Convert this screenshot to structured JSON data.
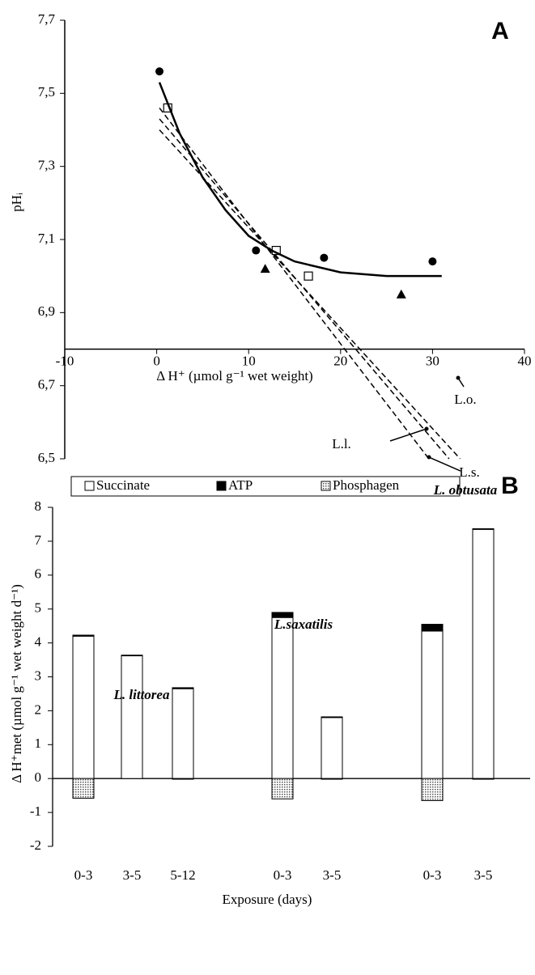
{
  "chart_data": [
    {
      "type": "scatter",
      "panel": "A",
      "ylabel": "pHᵢ",
      "xlabel": "Δ H⁺ (µmol g⁻¹ wet weight)",
      "xlim": [
        -10,
        40
      ],
      "xticks": [
        -10,
        0,
        10,
        20,
        30,
        40
      ],
      "ylim": [
        6.5,
        7.7
      ],
      "yticks": [
        {
          "value": 6.5,
          "label": "6,5"
        },
        {
          "value": 6.7,
          "label": "6,7"
        },
        {
          "value": 6.9,
          "label": "6,9"
        },
        {
          "value": 7.1,
          "label": "7,1"
        },
        {
          "value": 7.3,
          "label": "7,3"
        },
        {
          "value": 7.5,
          "label": "7,5"
        },
        {
          "value": 7.7,
          "label": "7,7"
        }
      ],
      "x_axis_at": 6.8,
      "series": [
        {
          "marker": "circle",
          "color": "#000000",
          "x": [
            0.3,
            10.8,
            18.2,
            30
          ],
          "y": [
            7.56,
            7.07,
            7.05,
            7.04
          ]
        },
        {
          "marker": "triangle",
          "color": "#000000",
          "x": [
            11.8,
            26.6
          ],
          "y": [
            7.02,
            6.95
          ]
        },
        {
          "marker": "open-square",
          "color": "#000000",
          "x": [
            1.2,
            13,
            16.5
          ],
          "y": [
            7.46,
            7.07,
            7.0
          ]
        },
        {
          "line": "solid",
          "color": "#000000",
          "x": [
            0.3,
            2.5,
            5,
            7.5,
            10,
            12.5,
            15,
            20,
            25,
            31
          ],
          "y": [
            7.53,
            7.39,
            7.27,
            7.18,
            7.11,
            7.07,
            7.04,
            7.01,
            7.0,
            7.0
          ]
        },
        {
          "line": "dashed",
          "color": "#000000",
          "x": [
            0.3,
            29.6
          ],
          "y": [
            7.46,
            6.5
          ]
        },
        {
          "line": "dashed",
          "color": "#000000",
          "x": [
            0.3,
            31.8
          ],
          "y": [
            7.43,
            6.5
          ]
        },
        {
          "line": "dashed",
          "color": "#000000",
          "x": [
            0.3,
            33.0
          ],
          "y": [
            7.4,
            6.5
          ]
        }
      ],
      "annotations": [
        "L.o.",
        "L.l.",
        "L.s."
      ]
    },
    {
      "type": "stacked-bar",
      "panel": "B",
      "ylabel": "Δ H⁺met (µmol g⁻¹ wet weight d⁻¹)",
      "xlabel": "Exposure (days)",
      "ylim": [
        -2,
        8
      ],
      "yticks": [
        -2,
        -1,
        0,
        1,
        2,
        3,
        4,
        5,
        6,
        7,
        8
      ],
      "categories": [
        "0-3",
        "3-5",
        "5-12",
        "0-3",
        "3-5",
        "0-3",
        "3-5"
      ],
      "groups": [
        "L. littorea",
        "L.saxatilis",
        "L. obtusata"
      ],
      "series": [
        {
          "name": "Succinate",
          "color": "#ffffff",
          "values": [
            4.2,
            3.62,
            2.65,
            4.75,
            1.8,
            4.35,
            7.35
          ]
        },
        {
          "name": "ATP",
          "color": "#000000",
          "values": [
            0.03,
            0.02,
            0.03,
            0.15,
            0.02,
            0.2,
            0.02
          ]
        },
        {
          "name": "Phosphagen",
          "color": "#aaaaaa",
          "pattern": "dots",
          "values": [
            -0.58,
            0,
            -0.02,
            -0.6,
            -0.02,
            -0.65,
            -0.02
          ]
        }
      ]
    }
  ]
}
